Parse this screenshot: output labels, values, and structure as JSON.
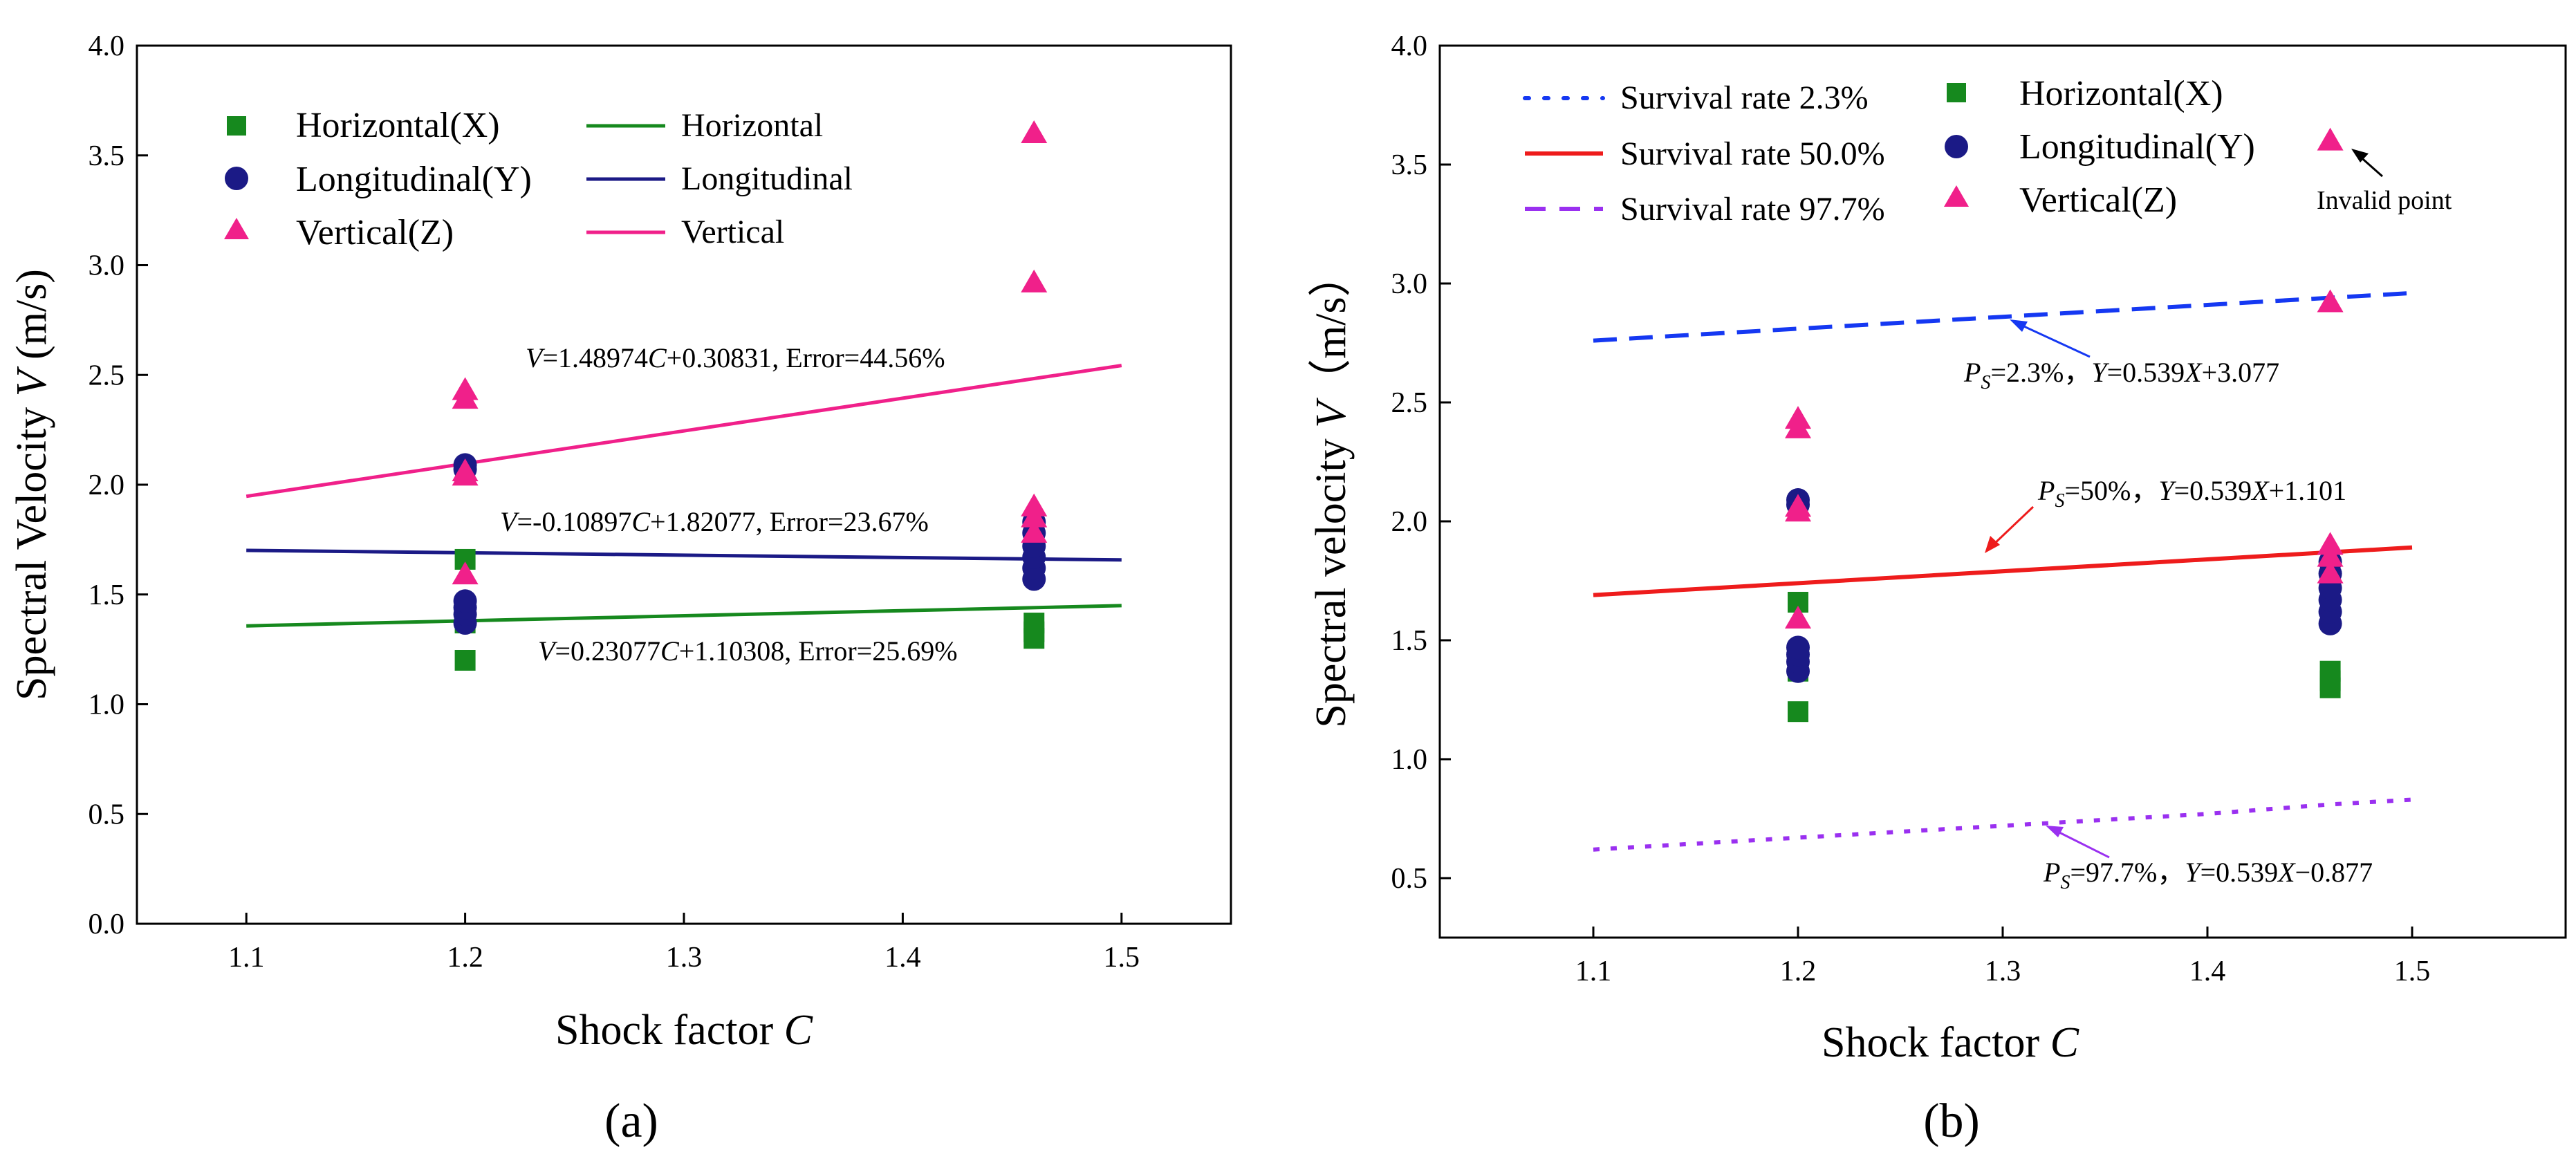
{
  "panels": [
    {
      "panel_label": "(a)",
      "chart_data": {
        "type": "scatter",
        "title": "",
        "xlabel": "Shock factor",
        "xlabel_var": "C",
        "ylabel": "Spectral Velocity",
        "ylabel_var": "V",
        "ylabel_unit": "(m/s)",
        "xlim": [
          1.05,
          1.55
        ],
        "ylim": [
          0.0,
          4.0
        ],
        "xticks": [
          1.1,
          1.2,
          1.3,
          1.4,
          1.5
        ],
        "xtick_labels": [
          "1.1",
          "1.2",
          "1.3",
          "1.4",
          "1.5"
        ],
        "yticks": [
          0.0,
          0.5,
          1.0,
          1.5,
          2.0,
          2.5,
          3.0,
          3.5,
          4.0
        ],
        "ytick_labels": [
          "0.0",
          "0.5",
          "1.0",
          "1.5",
          "2.0",
          "2.5",
          "3.0",
          "3.5",
          "4.0"
        ],
        "grid": false,
        "legend_position": "top",
        "scatter_series": [
          {
            "key": "h",
            "name": "Horizontal(X)",
            "marker": "square",
            "color": "#16891e",
            "points": [
              [
                1.2,
                1.2
              ],
              [
                1.2,
                1.37
              ],
              [
                1.2,
                1.42
              ],
              [
                1.2,
                1.66
              ],
              [
                1.46,
                1.3
              ],
              [
                1.46,
                1.33
              ],
              [
                1.46,
                1.37
              ]
            ]
          },
          {
            "key": "l",
            "name": "Longitudinal(Y)",
            "marker": "circle",
            "color": "#1b1a86",
            "points": [
              [
                1.2,
                1.37
              ],
              [
                1.2,
                1.41
              ],
              [
                1.2,
                1.44
              ],
              [
                1.2,
                1.47
              ],
              [
                1.2,
                2.07
              ],
              [
                1.2,
                2.09
              ],
              [
                1.46,
                1.57
              ],
              [
                1.46,
                1.62
              ],
              [
                1.46,
                1.67
              ],
              [
                1.46,
                1.72
              ],
              [
                1.46,
                1.78
              ],
              [
                1.46,
                1.83
              ]
            ]
          },
          {
            "key": "v",
            "name": "Vertical(Z)",
            "marker": "triangle",
            "color": "#f0208a",
            "points": [
              [
                1.2,
                1.59
              ],
              [
                1.2,
                2.04
              ],
              [
                1.2,
                2.06
              ],
              [
                1.2,
                2.39
              ],
              [
                1.2,
                2.43
              ],
              [
                1.46,
                1.78
              ],
              [
                1.46,
                1.85
              ],
              [
                1.46,
                1.9
              ],
              [
                1.46,
                2.92
              ],
              [
                1.46,
                3.6
              ]
            ]
          }
        ],
        "line_series": [
          {
            "key": "lh",
            "name": "Horizontal",
            "style": "solid",
            "color": "#16891e",
            "slope": 0.23077,
            "intercept": 1.10308,
            "x": [
              1.1,
              1.5
            ]
          },
          {
            "key": "ll",
            "name": "Longitudinal",
            "style": "solid",
            "color": "#1b1a86",
            "slope": -0.10897,
            "intercept": 1.82077,
            "x": [
              1.1,
              1.5
            ]
          },
          {
            "key": "lv",
            "name": "Vertical",
            "style": "solid",
            "color": "#f0208a",
            "slope": 1.48974,
            "intercept": 0.30831,
            "x": [
              1.1,
              1.5
            ]
          }
        ],
        "annotations": [
          {
            "key": "eq_v",
            "color": "#f0208a",
            "pre": "",
            "v1": "V",
            "mid": "=1.48974",
            "v2": "C",
            "post": "+0.30831, Error=44.56%"
          },
          {
            "key": "eq_l",
            "color": "#1b1a86",
            "pre": "",
            "v1": "V",
            "mid": "=-0.10897",
            "v2": "C",
            "post": "+1.82077, Error=23.67%"
          },
          {
            "key": "eq_h",
            "color": "#16891e",
            "pre": "",
            "v1": "V",
            "mid": "=0.23077",
            "v2": "C",
            "post": "+1.10308, Error=25.69%"
          }
        ]
      }
    },
    {
      "panel_label": "(b)",
      "chart_data": {
        "type": "scatter",
        "title": "",
        "xlabel": "Shock factor",
        "xlabel_var": "C",
        "ylabel": "Spectral velocity",
        "ylabel_var": "V",
        "ylabel_unit": "（m/s）",
        "xlim": [
          1.025,
          1.575
        ],
        "ylim": [
          0.25,
          4.0
        ],
        "xticks": [
          1.1,
          1.2,
          1.3,
          1.4,
          1.5
        ],
        "xtick_labels": [
          "1.1",
          "1.2",
          "1.3",
          "1.4",
          "1.5"
        ],
        "yticks": [
          0.5,
          1.0,
          1.5,
          2.0,
          2.5,
          3.0,
          3.5,
          4.0
        ],
        "ytick_labels": [
          "0.5",
          "1.0",
          "1.5",
          "2.0",
          "2.5",
          "3.0",
          "3.5",
          "4.0"
        ],
        "grid": false,
        "legend_position": "top",
        "scatter_series": [
          {
            "key": "h",
            "name": "Horizontal(X)",
            "marker": "square",
            "color": "#16891e",
            "points": [
              [
                1.2,
                1.2
              ],
              [
                1.2,
                1.37
              ],
              [
                1.2,
                1.42
              ],
              [
                1.2,
                1.66
              ],
              [
                1.46,
                1.3
              ],
              [
                1.46,
                1.33
              ],
              [
                1.46,
                1.37
              ]
            ]
          },
          {
            "key": "l",
            "name": "Longitudinal(Y)",
            "marker": "circle",
            "color": "#1b1a86",
            "points": [
              [
                1.2,
                1.37
              ],
              [
                1.2,
                1.41
              ],
              [
                1.2,
                1.44
              ],
              [
                1.2,
                1.47
              ],
              [
                1.2,
                2.07
              ],
              [
                1.2,
                2.09
              ],
              [
                1.46,
                1.57
              ],
              [
                1.46,
                1.62
              ],
              [
                1.46,
                1.67
              ],
              [
                1.46,
                1.72
              ],
              [
                1.46,
                1.78
              ],
              [
                1.46,
                1.83
              ]
            ]
          },
          {
            "key": "v",
            "name": "Vertical(Z)",
            "marker": "triangle",
            "color": "#f0208a",
            "points": [
              [
                1.2,
                1.59
              ],
              [
                1.2,
                2.04
              ],
              [
                1.2,
                2.06
              ],
              [
                1.2,
                2.39
              ],
              [
                1.2,
                2.43
              ],
              [
                1.46,
                1.78
              ],
              [
                1.46,
                1.85
              ],
              [
                1.46,
                1.9
              ],
              [
                1.46,
                2.92
              ],
              [
                1.46,
                3.6
              ]
            ]
          }
        ],
        "line_series": [
          {
            "key": "s23",
            "name": "Survival rate 2.3%",
            "legend_style": "dotted",
            "style": "dashed",
            "color": "#1538f2",
            "x": [
              1.1,
              1.2,
              1.3,
              1.4,
              1.46,
              1.5
            ],
            "y": [
              2.76,
              2.81,
              2.86,
              2.91,
              2.94,
              2.96
            ]
          },
          {
            "key": "s50",
            "name": "Survival rate 50.0%",
            "legend_style": "solid",
            "style": "solid",
            "color": "#ee1c1c",
            "x": [
              1.1,
              1.5
            ],
            "y": [
              1.69,
              1.89
            ]
          },
          {
            "key": "s977",
            "name": "Survival rate 97.7%",
            "legend_style": "dashed",
            "style": "dotted",
            "color": "#9a30f0",
            "x": [
              1.1,
              1.2,
              1.3,
              1.4,
              1.46,
              1.5
            ],
            "y": [
              0.62,
              0.67,
              0.72,
              0.77,
              0.81,
              0.83
            ]
          }
        ],
        "annotations": [
          {
            "key": "eq23",
            "color": "#1538f2",
            "pre": "P",
            "sub": "S",
            "mid": "=2.3%，",
            "v2": "Y",
            "post": "=0.539",
            "v3": "X",
            "tail": "+3.077"
          },
          {
            "key": "eq50",
            "color": "#ee1c1c",
            "pre": "P",
            "sub": "S",
            "mid": "=50%，",
            "v2": "Y",
            "post": "=0.539",
            "v3": "X",
            "tail": "+1.101"
          },
          {
            "key": "eq977",
            "color": "#9a30f0",
            "pre": "P",
            "sub": "S",
            "mid": "=97.7%，",
            "v2": "Y",
            "post": "=0.539",
            "v3": "X",
            "tail": "−0.877"
          },
          {
            "key": "invalid",
            "color": "#000000",
            "text": "Invalid point"
          }
        ]
      }
    }
  ]
}
